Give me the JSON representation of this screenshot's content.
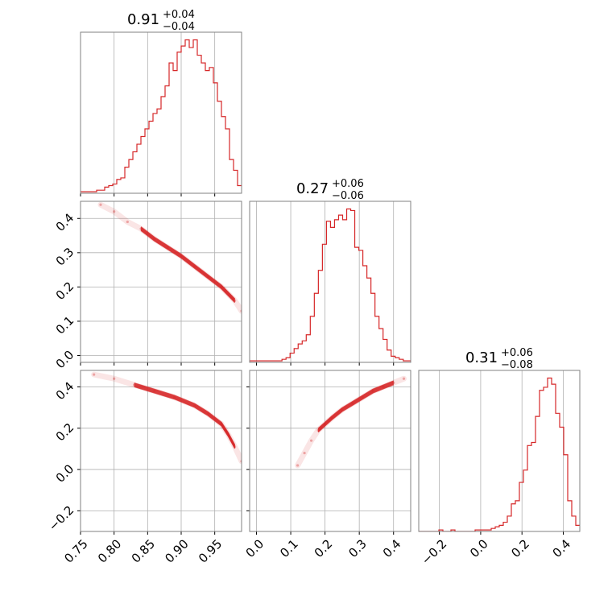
{
  "colors": {
    "series": "#d62728",
    "grid": "#b0b0b0",
    "frame": "#808080"
  },
  "titles": [
    {
      "main": "0.91",
      "sup": "+0.04",
      "sub": "−0.04"
    },
    {
      "main": "0.27",
      "sup": "+0.06",
      "sub": "−0.06"
    },
    {
      "main": "0.31",
      "sup": "+0.06",
      "sub": "−0.08"
    }
  ],
  "chart_data": [
    {
      "type": "histogram",
      "panel": "p0-hist",
      "x_range": [
        0.75,
        0.99
      ],
      "x_ticks": [
        0.75,
        0.8,
        0.85,
        0.9,
        0.95
      ],
      "x_tick_labels": [
        "0.75",
        "0.80",
        "0.85",
        "0.90",
        "0.95"
      ],
      "grid": true,
      "bin_start": 0.75,
      "bin_width": 0.006,
      "counts": [
        1,
        1,
        1,
        1,
        2,
        2,
        4,
        5,
        6,
        9,
        10,
        17,
        22,
        27,
        32,
        37,
        42,
        47,
        52,
        55,
        63,
        70,
        85,
        80,
        92,
        96,
        100,
        95,
        100,
        90,
        85,
        80,
        82,
        72,
        60,
        50,
        42,
        22,
        15,
        5
      ]
    },
    {
      "type": "histogram",
      "panel": "p1-hist",
      "x_range": [
        -0.02,
        0.45
      ],
      "x_ticks": [
        0.0,
        0.1,
        0.2,
        0.3,
        0.4
      ],
      "grid": true,
      "bin_start": -0.02,
      "bin_width": 0.0118,
      "counts": [
        1,
        1,
        1,
        1,
        1,
        1,
        1,
        1,
        2,
        3,
        6,
        9,
        12,
        14,
        18,
        30,
        45,
        60,
        77,
        92,
        88,
        93,
        96,
        93,
        100,
        99,
        75,
        73,
        63,
        55,
        45,
        30,
        22,
        15,
        8,
        4,
        3,
        2,
        1,
        1
      ]
    },
    {
      "type": "histogram",
      "panel": "p2-hist",
      "x_range": [
        -0.3,
        0.48
      ],
      "x_ticks": [
        -0.2,
        0.0,
        0.2,
        0.4
      ],
      "x_tick_labels": [
        "−0.2",
        "0.0",
        "0.2",
        "0.4"
      ],
      "grid": true,
      "bin_start": -0.3,
      "bin_width": 0.0195,
      "counts": [
        0,
        0,
        0,
        0,
        0,
        1,
        0,
        0,
        1,
        0,
        0,
        0,
        0,
        0,
        1,
        1,
        1,
        1,
        2,
        3,
        4,
        6,
        10,
        18,
        20,
        32,
        40,
        56,
        58,
        75,
        92,
        94,
        100,
        96,
        77,
        68,
        50,
        20,
        10,
        4
      ]
    },
    {
      "type": "scatter",
      "panel": "p1-vs-p0",
      "x_range": [
        0.75,
        0.99
      ],
      "y_range": [
        -0.02,
        0.45
      ],
      "x_ticks": [
        0.75,
        0.8,
        0.85,
        0.9,
        0.95
      ],
      "y_ticks": [
        0.0,
        0.1,
        0.2,
        0.3,
        0.4
      ],
      "y_tick_labels": [
        "0.0",
        "0.1",
        "0.2",
        "0.3",
        "0.4"
      ],
      "grid": true,
      "x": [
        0.78,
        0.8,
        0.82,
        0.84,
        0.86,
        0.88,
        0.9,
        0.92,
        0.94,
        0.96,
        0.98,
        0.99
      ],
      "y": [
        0.44,
        0.42,
        0.39,
        0.37,
        0.34,
        0.315,
        0.29,
        0.26,
        0.23,
        0.2,
        0.16,
        0.13
      ]
    },
    {
      "type": "scatter",
      "panel": "p2-vs-p0",
      "x_range": [
        0.75,
        0.99
      ],
      "y_range": [
        -0.3,
        0.48
      ],
      "x_ticks": [
        0.75,
        0.8,
        0.85,
        0.9,
        0.95
      ],
      "y_ticks": [
        -0.2,
        0.0,
        0.2,
        0.4
      ],
      "y_tick_labels": [
        "−0.2",
        "0.0",
        "0.2",
        "0.4"
      ],
      "grid": true,
      "x": [
        0.77,
        0.8,
        0.83,
        0.86,
        0.89,
        0.92,
        0.94,
        0.96,
        0.97,
        0.98,
        0.99
      ],
      "y": [
        0.46,
        0.44,
        0.41,
        0.38,
        0.35,
        0.31,
        0.27,
        0.22,
        0.17,
        0.11,
        0.04
      ]
    },
    {
      "type": "scatter",
      "panel": "p2-vs-p1",
      "x_range": [
        -0.02,
        0.45
      ],
      "y_range": [
        -0.3,
        0.48
      ],
      "x_ticks": [
        0.0,
        0.1,
        0.2,
        0.3,
        0.4
      ],
      "x_tick_labels": [
        "0.0",
        "0.1",
        "0.2",
        "0.3",
        "0.4"
      ],
      "y_ticks": [
        -0.2,
        0.0,
        0.2,
        0.4
      ],
      "grid": true,
      "x": [
        0.12,
        0.14,
        0.16,
        0.18,
        0.2,
        0.22,
        0.25,
        0.28,
        0.31,
        0.34,
        0.37,
        0.4,
        0.43
      ],
      "y": [
        0.02,
        0.08,
        0.14,
        0.19,
        0.22,
        0.25,
        0.29,
        0.32,
        0.35,
        0.38,
        0.4,
        0.42,
        0.44
      ]
    }
  ]
}
